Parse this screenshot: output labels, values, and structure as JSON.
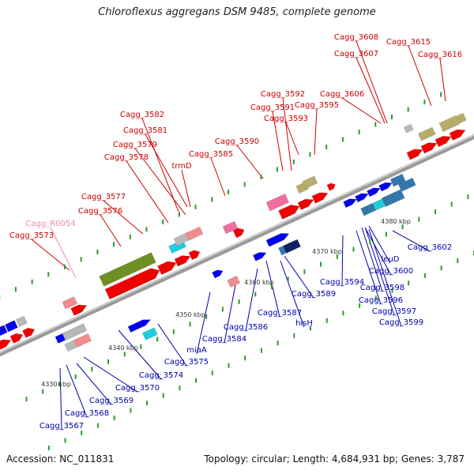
{
  "title": "Chloroflexus aggregans DSM 9485, complete genome",
  "footer": {
    "accession": "Accession: NC_011831",
    "summary": "Topology: circular; Length: 4,684,931 bp; Genes: 3,787"
  },
  "colors": {
    "backbone": "#9a9a9a",
    "tick": "#2e9a2e",
    "position_label": "#333333",
    "forward_label": "#cc0000",
    "reverse_label": "#0000aa",
    "rna_label": "#ee88aa",
    "gene_red": "#ee0000",
    "gene_blue": "#0000ee",
    "gene_olive": "#6f8f22",
    "gene_khaki": "#b7ac6c",
    "gene_pink": "#f06fa0",
    "gene_salmon": "#f08c8c",
    "gene_grey": "#b8b8b8",
    "gene_cyan": "#22ccdd",
    "gene_steel": "#3377aa",
    "gene_navy": "#112266"
  },
  "position_labels": [
    "4330 kbp",
    "4340 kbp",
    "4350 kbp",
    "4360 kbp",
    "4370 kbp",
    "4380 kbp"
  ],
  "forward_labels": [
    "Cagg_3608",
    "Cagg_3607",
    "Cagg_3615",
    "Cagg_3616",
    "Cagg_3606",
    "Cagg_3592",
    "Cagg_3591",
    "Cagg_3595",
    "Cagg_3593",
    "Cagg_3582",
    "Cagg_3581",
    "Cagg_3590",
    "Cagg_3579",
    "Cagg_3585",
    "Cagg_3578",
    "trmD",
    "Cagg_3577",
    "Cagg_3576",
    "Cagg_3573"
  ],
  "rna_labels": [
    "Cagg_R0054"
  ],
  "reverse_labels": [
    "Cagg_3602",
    "leuD",
    "Cagg_3600",
    "Cagg_3594",
    "Cagg_3598",
    "Cagg_3596",
    "Cagg_3589",
    "Cagg_3597",
    "Cagg_3599",
    "Cagg_3587",
    "hisH",
    "Cagg_3586",
    "Cagg_3584",
    "miaA",
    "Cagg_3575",
    "Cagg_3574",
    "Cagg_3570",
    "Cagg_3569",
    "Cagg_3568",
    "Cagg_3567"
  ]
}
